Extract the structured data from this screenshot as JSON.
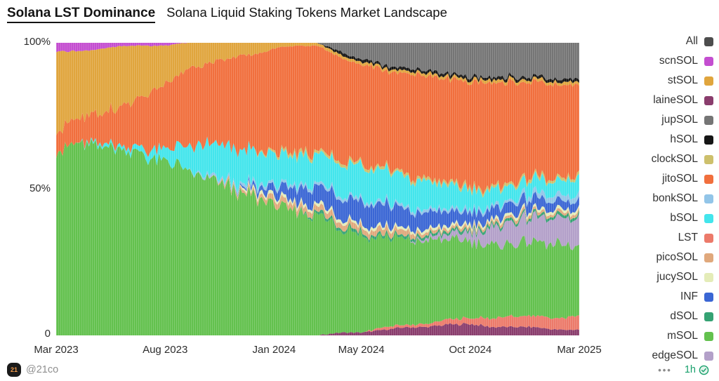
{
  "header": {
    "title": "Solana LST Dominance",
    "subtitle": "Solana Liquid Staking Tokens Market Landscape"
  },
  "chart_data": {
    "type": "area",
    "stacked": true,
    "normalized_to_100pct": true,
    "title": "Solana LST Dominance",
    "x_labels": [
      "Mar 2023",
      "Aug 2023",
      "Jan 2024",
      "May 2024",
      "Oct 2024",
      "Mar 2025"
    ],
    "x_label_indices": [
      0,
      5,
      10,
      14,
      19,
      24
    ],
    "n_points": 25,
    "y_ticks": [
      "100%",
      "50%",
      "0"
    ],
    "ylim": [
      0,
      100
    ],
    "legend_position": "right",
    "series": [
      {
        "name": "laineSOL",
        "color": "#8a3d6d",
        "values": [
          0,
          0,
          0,
          0,
          0,
          0,
          0,
          0,
          0,
          0,
          0,
          0,
          0,
          1,
          1,
          2,
          3,
          3,
          4,
          4,
          3,
          3,
          3,
          2,
          2
        ]
      },
      {
        "name": "LST",
        "color": "#ec7a6a",
        "values": [
          0,
          0,
          0,
          0,
          0,
          0,
          0,
          0,
          0,
          0,
          0,
          0,
          0,
          0,
          0,
          1,
          1,
          1,
          2,
          2,
          3,
          4,
          4,
          4,
          5
        ]
      },
      {
        "name": "mSOL",
        "color": "#63c14e",
        "values": [
          63,
          65,
          64,
          63,
          61,
          59,
          56,
          53,
          50,
          47,
          45,
          43,
          41,
          38,
          35,
          33,
          31,
          30,
          29,
          27,
          26,
          26,
          27,
          26,
          24
        ]
      },
      {
        "name": "edgeSOL",
        "color": "#b3a0c9",
        "values": [
          0,
          0,
          0,
          0,
          0,
          0,
          0,
          0,
          0,
          0,
          0,
          0,
          0,
          0,
          0,
          0,
          0,
          1,
          2,
          3,
          6,
          8,
          9,
          9,
          10
        ]
      },
      {
        "name": "dSOL",
        "color": "#35a273",
        "values": [
          0,
          0,
          0,
          0,
          0,
          0,
          0,
          0,
          0,
          0,
          0,
          0,
          1,
          1,
          1,
          1,
          1,
          1,
          1,
          1,
          1,
          1,
          1,
          1,
          1
        ]
      },
      {
        "name": "picoSOL",
        "color": "#e0a87c",
        "values": [
          0,
          0,
          0,
          0,
          0,
          0,
          0,
          0,
          1,
          1,
          2,
          2,
          2,
          2,
          2,
          2,
          2,
          1,
          1,
          1,
          1,
          1,
          1,
          1,
          1
        ]
      },
      {
        "name": "jucySOL",
        "color": "#e4ecb8",
        "values": [
          0,
          0,
          0,
          0,
          0,
          0,
          0,
          0,
          0,
          1,
          1,
          1,
          1,
          1,
          1,
          1,
          1,
          1,
          1,
          1,
          1,
          1,
          1,
          1,
          1
        ]
      },
      {
        "name": "INF",
        "color": "#3a66d4",
        "values": [
          0,
          0,
          0,
          0,
          0,
          0,
          0,
          0,
          0,
          1,
          3,
          5,
          6,
          7,
          8,
          8,
          7,
          6,
          5,
          4,
          4,
          4,
          4,
          3,
          3
        ]
      },
      {
        "name": "bonkSOL",
        "color": "#92c5e8",
        "values": [
          0,
          0,
          0,
          0,
          0,
          0,
          0,
          1,
          1,
          1,
          1,
          1,
          1,
          1,
          1,
          1,
          1,
          1,
          1,
          1,
          1,
          1,
          2,
          2,
          2
        ]
      },
      {
        "name": "bSOL",
        "color": "#43e5ec",
        "values": [
          0,
          0,
          1,
          1,
          2,
          4,
          8,
          11,
          12,
          11,
          10,
          10,
          10,
          11,
          12,
          12,
          11,
          10,
          9,
          7,
          6,
          5,
          5,
          5,
          6
        ]
      },
      {
        "name": "clockSOL",
        "color": "#cdc06c",
        "values": [
          0,
          0,
          0,
          0,
          0,
          0,
          0,
          0,
          0,
          0,
          1,
          1,
          1,
          1,
          1,
          1,
          1,
          1,
          1,
          1,
          1,
          1,
          1,
          1,
          1
        ]
      },
      {
        "name": "jitoSOL",
        "color": "#f16f3d",
        "values": [
          7,
          8,
          10,
          13,
          17,
          22,
          26,
          28,
          30,
          33,
          35,
          36,
          36,
          36,
          36,
          35,
          36,
          37,
          37,
          38,
          37,
          35,
          33,
          33,
          32
        ]
      },
      {
        "name": "stSOL",
        "color": "#e0a53d",
        "values": [
          27,
          24,
          22,
          20,
          17,
          13,
          9,
          7,
          5,
          4,
          2,
          1,
          1,
          1,
          1,
          1,
          1,
          1,
          1,
          1,
          1,
          1,
          1,
          1,
          1
        ]
      },
      {
        "name": "hSOL",
        "color": "#151515",
        "values": [
          0,
          0,
          0,
          0,
          0,
          0,
          0,
          0,
          0,
          0,
          0,
          0,
          0,
          1,
          1,
          1,
          1,
          1,
          1,
          1,
          1,
          1,
          1,
          1,
          1
        ]
      },
      {
        "name": "jupSOL",
        "color": "#757575",
        "values": [
          0,
          0,
          0,
          0,
          0,
          0,
          0,
          0,
          0,
          0,
          0,
          0,
          0,
          3,
          6,
          8,
          9,
          10,
          11,
          12,
          12,
          12,
          12,
          13,
          13
        ]
      },
      {
        "name": "scnSOL",
        "color": "#c44ed0",
        "values": [
          3,
          3,
          2,
          1,
          1,
          1,
          0,
          0,
          0,
          0,
          0,
          0,
          0,
          0,
          0,
          0,
          0,
          0,
          0,
          0,
          0,
          0,
          0,
          0,
          0
        ]
      }
    ]
  },
  "legend": {
    "items": [
      {
        "label": "All",
        "color": "#4d4d4d"
      },
      {
        "label": "scnSOL",
        "color": "#c44ed0"
      },
      {
        "label": "stSOL",
        "color": "#e0a53d"
      },
      {
        "label": "laineSOL",
        "color": "#8a3d6d"
      },
      {
        "label": "jupSOL",
        "color": "#757575"
      },
      {
        "label": "hSOL",
        "color": "#151515"
      },
      {
        "label": "clockSOL",
        "color": "#cdc06c"
      },
      {
        "label": "jitoSOL",
        "color": "#f16f3d"
      },
      {
        "label": "bonkSOL",
        "color": "#92c5e8"
      },
      {
        "label": "bSOL",
        "color": "#43e5ec"
      },
      {
        "label": "LST",
        "color": "#ec7a6a"
      },
      {
        "label": "picoSOL",
        "color": "#e0a87c"
      },
      {
        "label": "jucySOL",
        "color": "#e4ecb8"
      },
      {
        "label": "INF",
        "color": "#3a66d4"
      },
      {
        "label": "dSOL",
        "color": "#35a273"
      },
      {
        "label": "mSOL",
        "color": "#63c14e"
      },
      {
        "label": "edgeSOL",
        "color": "#b3a0c9"
      }
    ]
  },
  "footer": {
    "logo_text": "21",
    "handle": "@21co",
    "menu_dots": "•••",
    "freshness": "1h"
  }
}
